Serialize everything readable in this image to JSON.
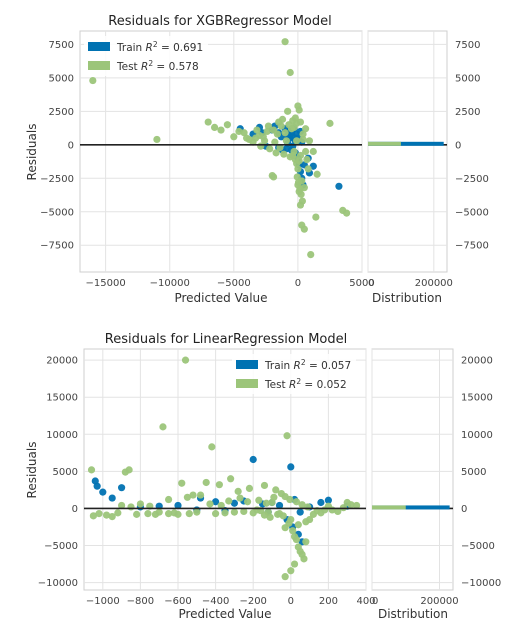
{
  "colors": {
    "train": "#0072b2",
    "test": "#9cc57a",
    "zero_line": "#222222",
    "grid": "#e3e3e3"
  },
  "chart_data": [
    {
      "type": "scatter",
      "title": "Residuals for XGBRegressor Model",
      "xlabel": "Predicted Value",
      "ylabel": "Residuals",
      "xlim": [
        -17000,
        5000
      ],
      "ylim": [
        -9500,
        8500
      ],
      "xticks": [
        -15000,
        -10000,
        -5000,
        0,
        5000
      ],
      "xtick_labels": [
        "−15000",
        "−10000",
        "−5000",
        "0",
        "5000"
      ],
      "yticks": [
        7500,
        5000,
        2500,
        0,
        -2500,
        -5000,
        -7500
      ],
      "ytick_labels": [
        "7500",
        "5000",
        "2500",
        "0",
        "−2500",
        "−5000",
        "−7500"
      ],
      "grid": true,
      "legend_position": "upper-left",
      "series": [
        {
          "name": "Train R² = 0.691",
          "label_prefix": "Train ",
          "label_r2": "0.691",
          "points": [
            [
              -3000,
              1300
            ],
            [
              -4500,
              1200
            ],
            [
              -2800,
              900
            ],
            [
              -2000,
              1100
            ],
            [
              -1800,
              1400
            ],
            [
              -1500,
              900
            ],
            [
              -1300,
              600
            ],
            [
              -1000,
              1200
            ],
            [
              -800,
              700
            ],
            [
              -700,
              1000
            ],
            [
              -600,
              500
            ],
            [
              -500,
              900
            ],
            [
              -400,
              600
            ],
            [
              -300,
              1200
            ],
            [
              -200,
              300
            ],
            [
              -100,
              800
            ],
            [
              0,
              500
            ],
            [
              100,
              300
            ],
            [
              200,
              1000
            ],
            [
              300,
              200
            ],
            [
              -2500,
              -100
            ],
            [
              -1500,
              -200
            ],
            [
              -900,
              -300
            ],
            [
              -500,
              -400
            ],
            [
              -200,
              -600
            ],
            [
              0,
              -1000
            ],
            [
              100,
              -1500
            ],
            [
              200,
              -2000
            ],
            [
              300,
              -2500
            ],
            [
              400,
              -3000
            ],
            [
              3200,
              -3100
            ],
            [
              500,
              -1500
            ],
            [
              900,
              -2100
            ],
            [
              800,
              -1000
            ],
            [
              1200,
              -1600
            ],
            [
              -3500,
              800
            ],
            [
              -1200,
              -400
            ],
            [
              -800,
              100
            ],
            [
              -400,
              -100
            ]
          ]
        },
        {
          "name": "Test R² = 0.578",
          "label_prefix": "Test ",
          "label_r2": "0.578",
          "points": [
            [
              -16000,
              4800
            ],
            [
              -11000,
              400
            ],
            [
              -7000,
              1700
            ],
            [
              -6500,
              1300
            ],
            [
              -5500,
              1500
            ],
            [
              -4000,
              500
            ],
            [
              -3500,
              200
            ],
            [
              -1900,
              -2400
            ],
            [
              -2000,
              -2300
            ],
            [
              -1000,
              7700
            ],
            [
              -1200,
              1900
            ],
            [
              -1500,
              1700
            ],
            [
              -2300,
              1400
            ],
            [
              -3000,
              700
            ],
            [
              -1800,
              200
            ],
            [
              -2600,
              300
            ],
            [
              -600,
              5400
            ],
            [
              -800,
              2500
            ],
            [
              -400,
              1800
            ],
            [
              -300,
              1300
            ],
            [
              -200,
              2000
            ],
            [
              0,
              2900
            ],
            [
              100,
              2600
            ],
            [
              0,
              -3000
            ],
            [
              100,
              -3500
            ],
            [
              200,
              -4500
            ],
            [
              300,
              -6000
            ],
            [
              500,
              -6300
            ],
            [
              1000,
              -8200
            ],
            [
              1400,
              -5400
            ],
            [
              2500,
              1600
            ],
            [
              3500,
              -4900
            ],
            [
              3800,
              -5100
            ],
            [
              600,
              -500
            ],
            [
              800,
              -1800
            ],
            [
              1500,
              -2200
            ],
            [
              -100,
              300
            ],
            [
              -300,
              -500
            ],
            [
              -600,
              -900
            ],
            [
              -900,
              300
            ],
            [
              -1100,
              -700
            ],
            [
              -1400,
              -200
            ],
            [
              -1600,
              800
            ],
            [
              -1900,
              1100
            ],
            [
              -2200,
              -300
            ],
            [
              -2700,
              600
            ],
            [
              -3200,
              1100
            ],
            [
              -3800,
              400
            ],
            [
              -4200,
              900
            ],
            [
              -5000,
              600
            ],
            [
              400,
              400
            ],
            [
              200,
              -800
            ],
            [
              100,
              -1200
            ],
            [
              0,
              -1800
            ],
            [
              -100,
              -1400
            ],
            [
              -200,
              -1100
            ],
            [
              -400,
              -800
            ],
            [
              300,
              -2700
            ],
            [
              500,
              -3200
            ],
            [
              700,
              -1100
            ],
            [
              -100,
              1600
            ],
            [
              -500,
              1200
            ],
            [
              -700,
              1500
            ],
            [
              -1000,
              900
            ],
            [
              -1300,
              1400
            ],
            [
              -1700,
              -600
            ],
            [
              -2400,
              1000
            ],
            [
              -2900,
              -100
            ],
            [
              -3300,
              500
            ],
            [
              -4600,
              1000
            ],
            [
              -6000,
              1100
            ],
            [
              200,
              1700
            ],
            [
              400,
              800
            ],
            [
              600,
              1200
            ],
            [
              1200,
              -500
            ],
            [
              900,
              300
            ],
            [
              -50,
              -2400
            ],
            [
              50,
              -2800
            ],
            [
              150,
              -3300
            ],
            [
              250,
              -3700
            ],
            [
              350,
              -4200
            ]
          ]
        }
      ],
      "distribution": {
        "xlabel": "Distribution",
        "xticks": [
          0,
          200000
        ],
        "xtick_labels": [
          "0",
          "200000"
        ],
        "xlim": [
          0,
          240000
        ],
        "bars": [
          {
            "series": "Train",
            "value": 230000
          },
          {
            "series": "Test",
            "value": 100000
          }
        ]
      }
    },
    {
      "type": "scatter",
      "title": "Residuals for LinearRegression Model",
      "xlabel": "Predicted Value",
      "ylabel": "Residuals",
      "xlim": [
        -1100,
        400
      ],
      "ylim": [
        -11000,
        21500
      ],
      "xticks": [
        -1000,
        -800,
        -600,
        -400,
        -200,
        0,
        200,
        400
      ],
      "xtick_labels": [
        "−1000",
        "−800",
        "−600",
        "−400",
        "−200",
        "0",
        "200",
        "400"
      ],
      "yticks": [
        20000,
        15000,
        10000,
        5000,
        0,
        -5000,
        -10000
      ],
      "ytick_labels": [
        "20000",
        "15000",
        "10000",
        "5000",
        "0",
        "−5000",
        "−10000"
      ],
      "grid": true,
      "legend_position": "upper-right",
      "series": [
        {
          "name": "Train R² = 0.057",
          "label_prefix": "Train ",
          "label_r2": "0.057",
          "points": [
            [
              -1040,
              3700
            ],
            [
              -1030,
              3000
            ],
            [
              -1000,
              2200
            ],
            [
              -950,
              1400
            ],
            [
              -900,
              2800
            ],
            [
              -800,
              200
            ],
            [
              -700,
              300
            ],
            [
              -600,
              400
            ],
            [
              -480,
              1400
            ],
            [
              -400,
              900
            ],
            [
              -300,
              700
            ],
            [
              -250,
              1000
            ],
            [
              -200,
              6600
            ],
            [
              -150,
              600
            ],
            [
              -100,
              800
            ],
            [
              -60,
              400
            ],
            [
              0,
              5600
            ],
            [
              20,
              1200
            ],
            [
              50,
              -500
            ],
            [
              100,
              200
            ],
            [
              160,
              800
            ],
            [
              200,
              1100
            ],
            [
              300,
              300
            ],
            [
              -500,
              -200
            ],
            [
              -350,
              -300
            ],
            [
              -120,
              -500
            ],
            [
              -20,
              -1500
            ],
            [
              10,
              -2500
            ],
            [
              40,
              -3500
            ],
            [
              60,
              -4500
            ]
          ]
        },
        {
          "name": "Test R² = 0.052",
          "label_prefix": "Test ",
          "label_r2": "0.052",
          "points": [
            [
              -1060,
              5200
            ],
            [
              -1050,
              -1000
            ],
            [
              -1020,
              -700
            ],
            [
              -980,
              -900
            ],
            [
              -950,
              -1100
            ],
            [
              -920,
              -600
            ],
            [
              -880,
              4900
            ],
            [
              -860,
              5200
            ],
            [
              -820,
              -800
            ],
            [
              -760,
              -700
            ],
            [
              -720,
              -800
            ],
            [
              -700,
              -500
            ],
            [
              -680,
              11000
            ],
            [
              -650,
              -700
            ],
            [
              -620,
              -600
            ],
            [
              -600,
              -800
            ],
            [
              -580,
              3400
            ],
            [
              -560,
              20000
            ],
            [
              -540,
              -700
            ],
            [
              -520,
              1800
            ],
            [
              -500,
              -500
            ],
            [
              -450,
              3500
            ],
            [
              -420,
              8300
            ],
            [
              -400,
              -700
            ],
            [
              -380,
              3200
            ],
            [
              -350,
              -600
            ],
            [
              -320,
              4000
            ],
            [
              -300,
              -500
            ],
            [
              -280,
              2300
            ],
            [
              -250,
              -400
            ],
            [
              -220,
              2700
            ],
            [
              -200,
              -600
            ],
            [
              -180,
              -200
            ],
            [
              -160,
              -300
            ],
            [
              -140,
              3100
            ],
            [
              -120,
              -500
            ],
            [
              -100,
              800
            ],
            [
              -80,
              2500
            ],
            [
              -60,
              -700
            ],
            [
              -40,
              -1000
            ],
            [
              -20,
              9800
            ],
            [
              -10,
              -2000
            ],
            [
              0,
              -1500
            ],
            [
              10,
              -3000
            ],
            [
              20,
              -3800
            ],
            [
              30,
              -4200
            ],
            [
              40,
              -5200
            ],
            [
              50,
              -5800
            ],
            [
              60,
              -6200
            ],
            [
              70,
              -6800
            ],
            [
              80,
              -4500
            ],
            [
              -30,
              -9200
            ],
            [
              0,
              -8400
            ],
            [
              20,
              -7500
            ],
            [
              100,
              -1500
            ],
            [
              120,
              -800
            ],
            [
              140,
              -300
            ],
            [
              160,
              -600
            ],
            [
              180,
              -200
            ],
            [
              200,
              300
            ],
            [
              220,
              -200
            ],
            [
              250,
              -400
            ],
            [
              280,
              100
            ],
            [
              300,
              800
            ],
            [
              320,
              500
            ],
            [
              350,
              400
            ],
            [
              -900,
              400
            ],
            [
              -850,
              200
            ],
            [
              -800,
              600
            ],
            [
              -750,
              300
            ],
            [
              -650,
              1200
            ],
            [
              -550,
              1500
            ],
            [
              -480,
              1800
            ],
            [
              -430,
              600
            ],
            [
              -370,
              400
            ],
            [
              -330,
              1000
            ],
            [
              -270,
              1400
            ],
            [
              -230,
              900
            ],
            [
              -170,
              1100
            ],
            [
              -130,
              700
            ],
            [
              -90,
              1500
            ],
            [
              -50,
              2000
            ],
            [
              -30,
              1600
            ],
            [
              -5,
              1200
            ],
            [
              30,
              900
            ],
            [
              60,
              500
            ],
            [
              90,
              200
            ],
            [
              -140,
              -900
            ],
            [
              -110,
              -1200
            ],
            [
              -70,
              -800
            ],
            [
              -30,
              -2600
            ],
            [
              40,
              -2200
            ],
            [
              80,
              -1800
            ]
          ]
        }
      ],
      "distribution": {
        "xlabel": "Distribution",
        "xticks": [
          0,
          200000
        ],
        "xtick_labels": [
          "0",
          "200000"
        ],
        "xlim": [
          0,
          240000
        ],
        "bars": [
          {
            "series": "Train",
            "value": 230000
          },
          {
            "series": "Test",
            "value": 100000
          }
        ]
      }
    }
  ]
}
